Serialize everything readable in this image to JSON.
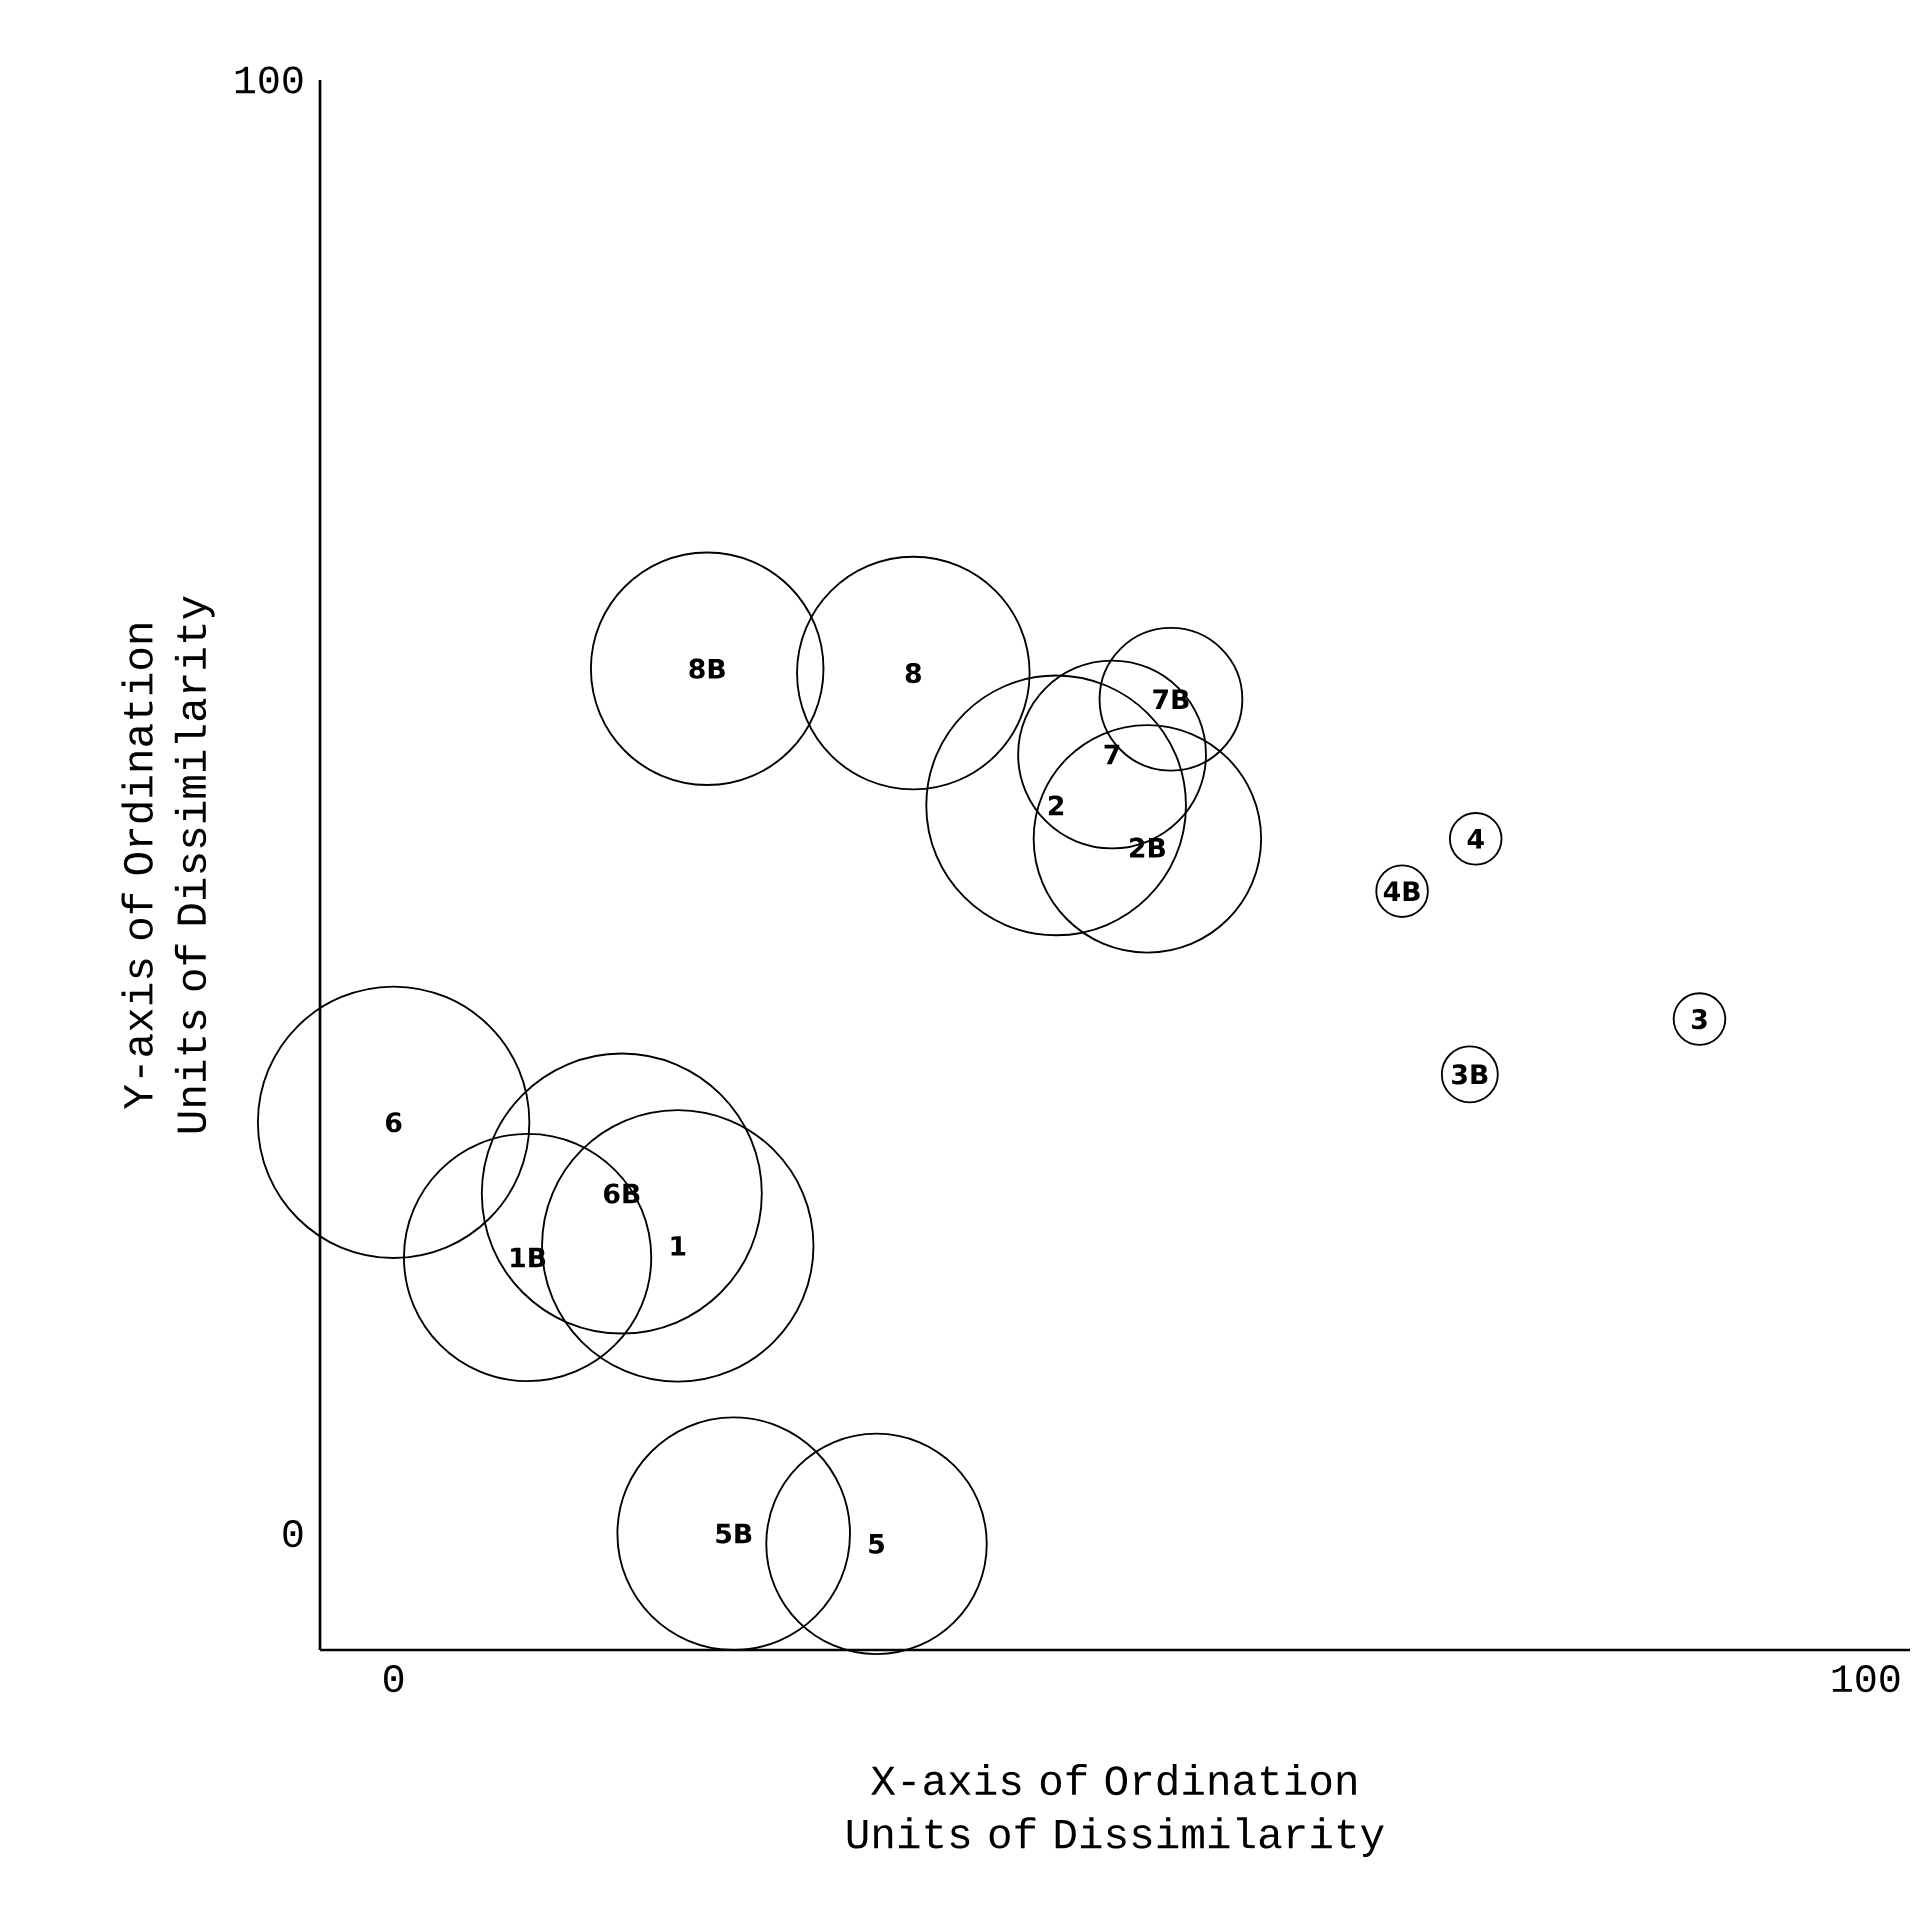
{
  "chart_data": {
    "type": "bubble",
    "xlabel": "X-axis of Ordination Units of Dissimilarity",
    "ylabel": "Y-axis of Ordination Units of Dissimilarity",
    "x": [
      21.3,
      35.3,
      52.8,
      48.8,
      45.0,
      51.2,
      73.5,
      68.5,
      88.7,
      73.1,
      0,
      15.5,
      9.1,
      19.3,
      23.1,
      32.8
    ],
    "values": [
      59.5,
      59.2,
      57.4,
      53.6,
      50.1,
      47.8,
      47.8,
      44.2,
      35.4,
      31.6,
      28.3,
      23.4,
      19.0,
      19.8,
      0,
      -0.7
    ],
    "sizes": [
      0.69,
      0.69,
      0.26,
      0.45,
      0.86,
      0.66,
      0.034,
      0.034,
      0.034,
      0.04,
      0.94,
      1,
      0.78,
      0.94,
      0.69,
      0.62
    ],
    "color": "#000000",
    "marker": "circle",
    "xlim": [
      -5,
      103
    ],
    "ylim": [
      -8,
      100
    ],
    "xticks": [
      0,
      100
    ],
    "yticks": [
      0,
      100
    ],
    "annotations": [
      {
        "text": "8B",
        "x": 21.3,
        "y": 59.5
      },
      {
        "text": "8",
        "x": 35.3,
        "y": 59.2
      },
      {
        "text": "7B",
        "x": 52.8,
        "y": 57.4
      },
      {
        "text": "7",
        "x": 48.8,
        "y": 53.6
      },
      {
        "text": "2",
        "x": 45.0,
        "y": 50.1
      },
      {
        "text": "2B",
        "x": 51.2,
        "y": 47.2
      },
      {
        "text": "4",
        "x": 73.5,
        "y": 47.8
      },
      {
        "text": "4B",
        "x": 68.5,
        "y": 44.2
      },
      {
        "text": "3",
        "x": 88.7,
        "y": 35.4
      },
      {
        "text": "3B",
        "x": 73.1,
        "y": 31.6
      },
      {
        "text": "6",
        "x": 0,
        "y": 28.3
      },
      {
        "text": "6B",
        "x": 15.5,
        "y": 23.4
      },
      {
        "text": "1B",
        "x": 9.1,
        "y": 19.0
      },
      {
        "text": "1",
        "x": 19.3,
        "y": 19.8
      },
      {
        "text": "5B",
        "x": 23.1,
        "y": 0
      },
      {
        "text": "5",
        "x": 32.8,
        "y": -0.7
      }
    ]
  }
}
